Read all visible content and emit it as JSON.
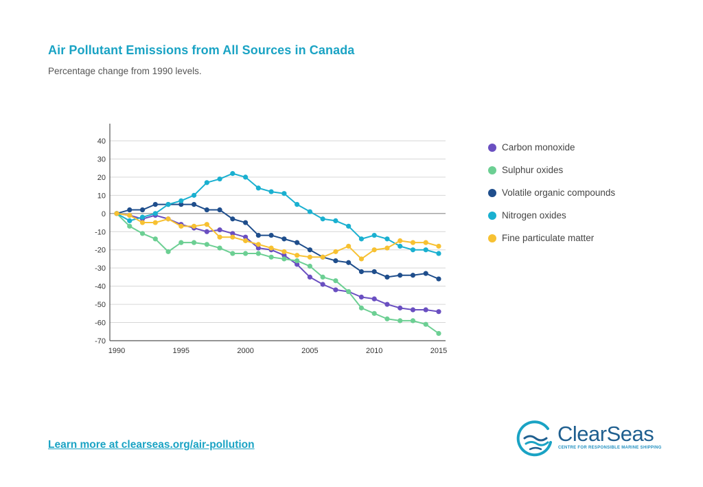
{
  "title": "Air Pollutant Emissions from All Sources in Canada",
  "subtitle": "Percentage change from 1990 levels.",
  "link_text": "Learn more at clearseas.org/air-pollution",
  "logo": {
    "name": "ClearSeas",
    "tagline": "CENTRE FOR RESPONSIBLE MARINE SHIPPING",
    "icon": "clear-seas-wave-icon",
    "colors": {
      "primary": "#1f5f8f",
      "accent": "#1aa3c4"
    }
  },
  "chart_data": {
    "type": "line",
    "title": "",
    "xlabel": "",
    "ylabel": "",
    "grid": true,
    "legend_position": "right",
    "xlim": [
      1990,
      2015
    ],
    "ylim": [
      -70,
      40
    ],
    "x_ticks": [
      1990,
      1995,
      2000,
      2005,
      2010,
      2015
    ],
    "y_ticks": [
      40,
      30,
      20,
      10,
      0,
      -10,
      -20,
      -30,
      -40,
      -50,
      -60,
      -70
    ],
    "x": [
      1990,
      1991,
      1992,
      1993,
      1994,
      1995,
      1996,
      1997,
      1998,
      1999,
      2000,
      2001,
      2002,
      2003,
      2004,
      2005,
      2006,
      2007,
      2008,
      2009,
      2010,
      2011,
      2012,
      2013,
      2014,
      2015
    ],
    "series": [
      {
        "name": "Carbon monoxide",
        "color": "#6a4fc1",
        "values": [
          0,
          -1,
          -3,
          -1,
          -3,
          -6,
          -8,
          -10,
          -9,
          -11,
          -13,
          -19,
          -20,
          -23,
          -28,
          -35,
          -39,
          -42,
          -43,
          -46,
          -47,
          -50,
          -52,
          -53,
          -53,
          -54
        ]
      },
      {
        "name": "Sulphur oxides",
        "color": "#6ccf93",
        "values": [
          0,
          -7,
          -11,
          -14,
          -21,
          -16,
          -16,
          -17,
          -19,
          -22,
          -22,
          -22,
          -24,
          -25,
          -26,
          -29,
          -35,
          -37,
          -43,
          -52,
          -55,
          -58,
          -59,
          -59,
          -61,
          -66
        ]
      },
      {
        "name": "Volatile organic compounds",
        "color": "#1f4e8c",
        "values": [
          0,
          2,
          2,
          5,
          5,
          5,
          5,
          2,
          2,
          -3,
          -5,
          -12,
          -12,
          -14,
          -16,
          -20,
          -24,
          -26,
          -27,
          -32,
          -32,
          -35,
          -34,
          -34,
          -33,
          -36
        ]
      },
      {
        "name": "Nitrogen oxides",
        "color": "#1ab0d0",
        "values": [
          0,
          -4,
          -2,
          0,
          5,
          7,
          10,
          17,
          19,
          22,
          20,
          14,
          12,
          11,
          5,
          1,
          -3,
          -4,
          -7,
          -14,
          -12,
          -14,
          -18,
          -20,
          -20,
          -22
        ]
      },
      {
        "name": "Fine particulate matter",
        "color": "#f7c132",
        "values": [
          0,
          -1,
          -5,
          -5,
          -3,
          -7,
          -7,
          -6,
          -13,
          -13,
          -15,
          -17,
          -19,
          -21,
          -23,
          -24,
          -24,
          -21,
          -18,
          -25,
          -20,
          -19,
          -15,
          -16,
          -16,
          -18
        ]
      }
    ]
  }
}
